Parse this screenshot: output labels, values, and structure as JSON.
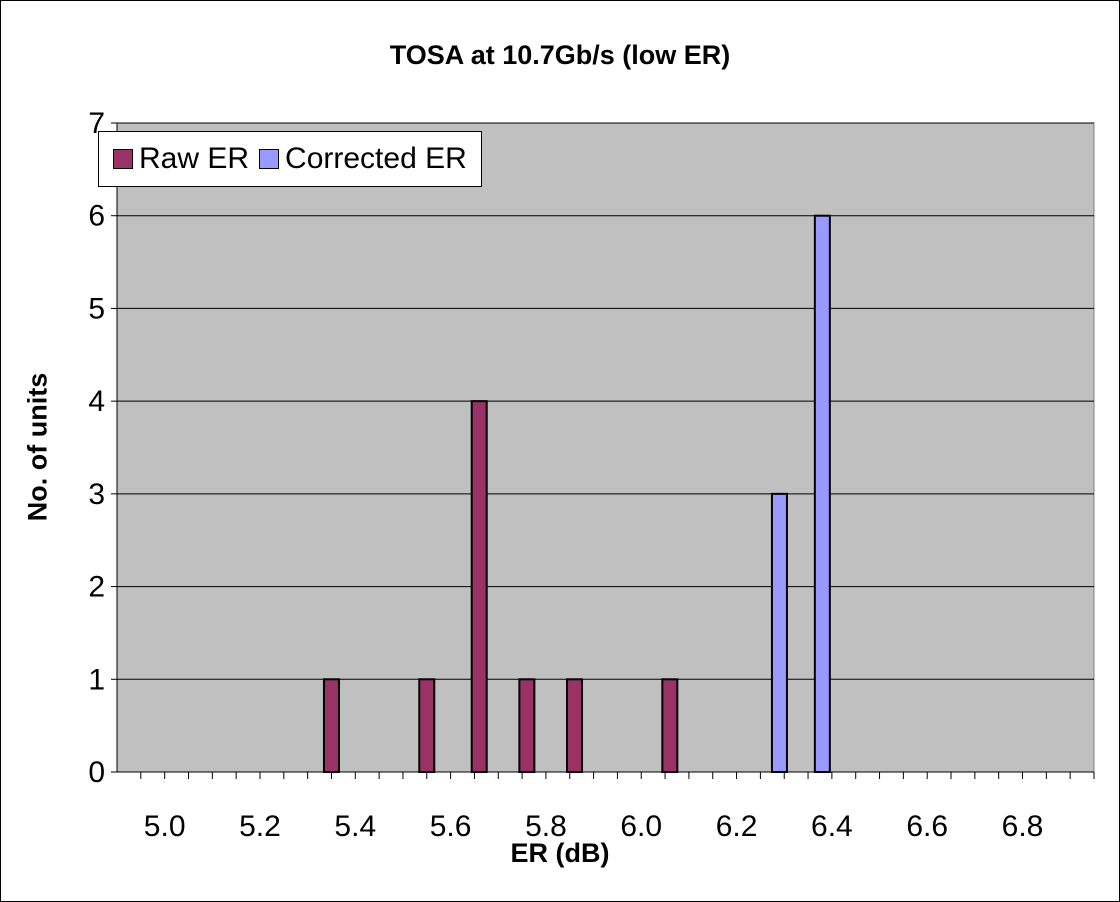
{
  "chart_data": {
    "type": "bar",
    "title": "TOSA at 10.7Gb/s (low ER)",
    "xlabel": "ER (dB)",
    "ylabel": "No. of units",
    "x_tick_labels": [
      "5.0",
      "5.2",
      "5.4",
      "5.6",
      "5.8",
      "6.0",
      "6.2",
      "6.4",
      "6.6",
      "6.8"
    ],
    "y_tick_labels": [
      "0",
      "1",
      "2",
      "3",
      "4",
      "5",
      "6",
      "7"
    ],
    "ylim": [
      0,
      7
    ],
    "xlim": [
      4.9,
      6.95
    ],
    "grid": true,
    "legend_position": "top-left",
    "plot_background": "#c0c0c0",
    "series": [
      {
        "name": "Raw ER",
        "color": "#993366",
        "points": [
          {
            "x": 5.35,
            "y": 1
          },
          {
            "x": 5.55,
            "y": 1
          },
          {
            "x": 5.66,
            "y": 4
          },
          {
            "x": 5.76,
            "y": 1
          },
          {
            "x": 5.86,
            "y": 1
          },
          {
            "x": 6.06,
            "y": 1
          }
        ]
      },
      {
        "name": "Corrected ER",
        "color": "#9999ff",
        "points": [
          {
            "x": 6.29,
            "y": 3
          },
          {
            "x": 6.38,
            "y": 6
          }
        ]
      }
    ]
  }
}
